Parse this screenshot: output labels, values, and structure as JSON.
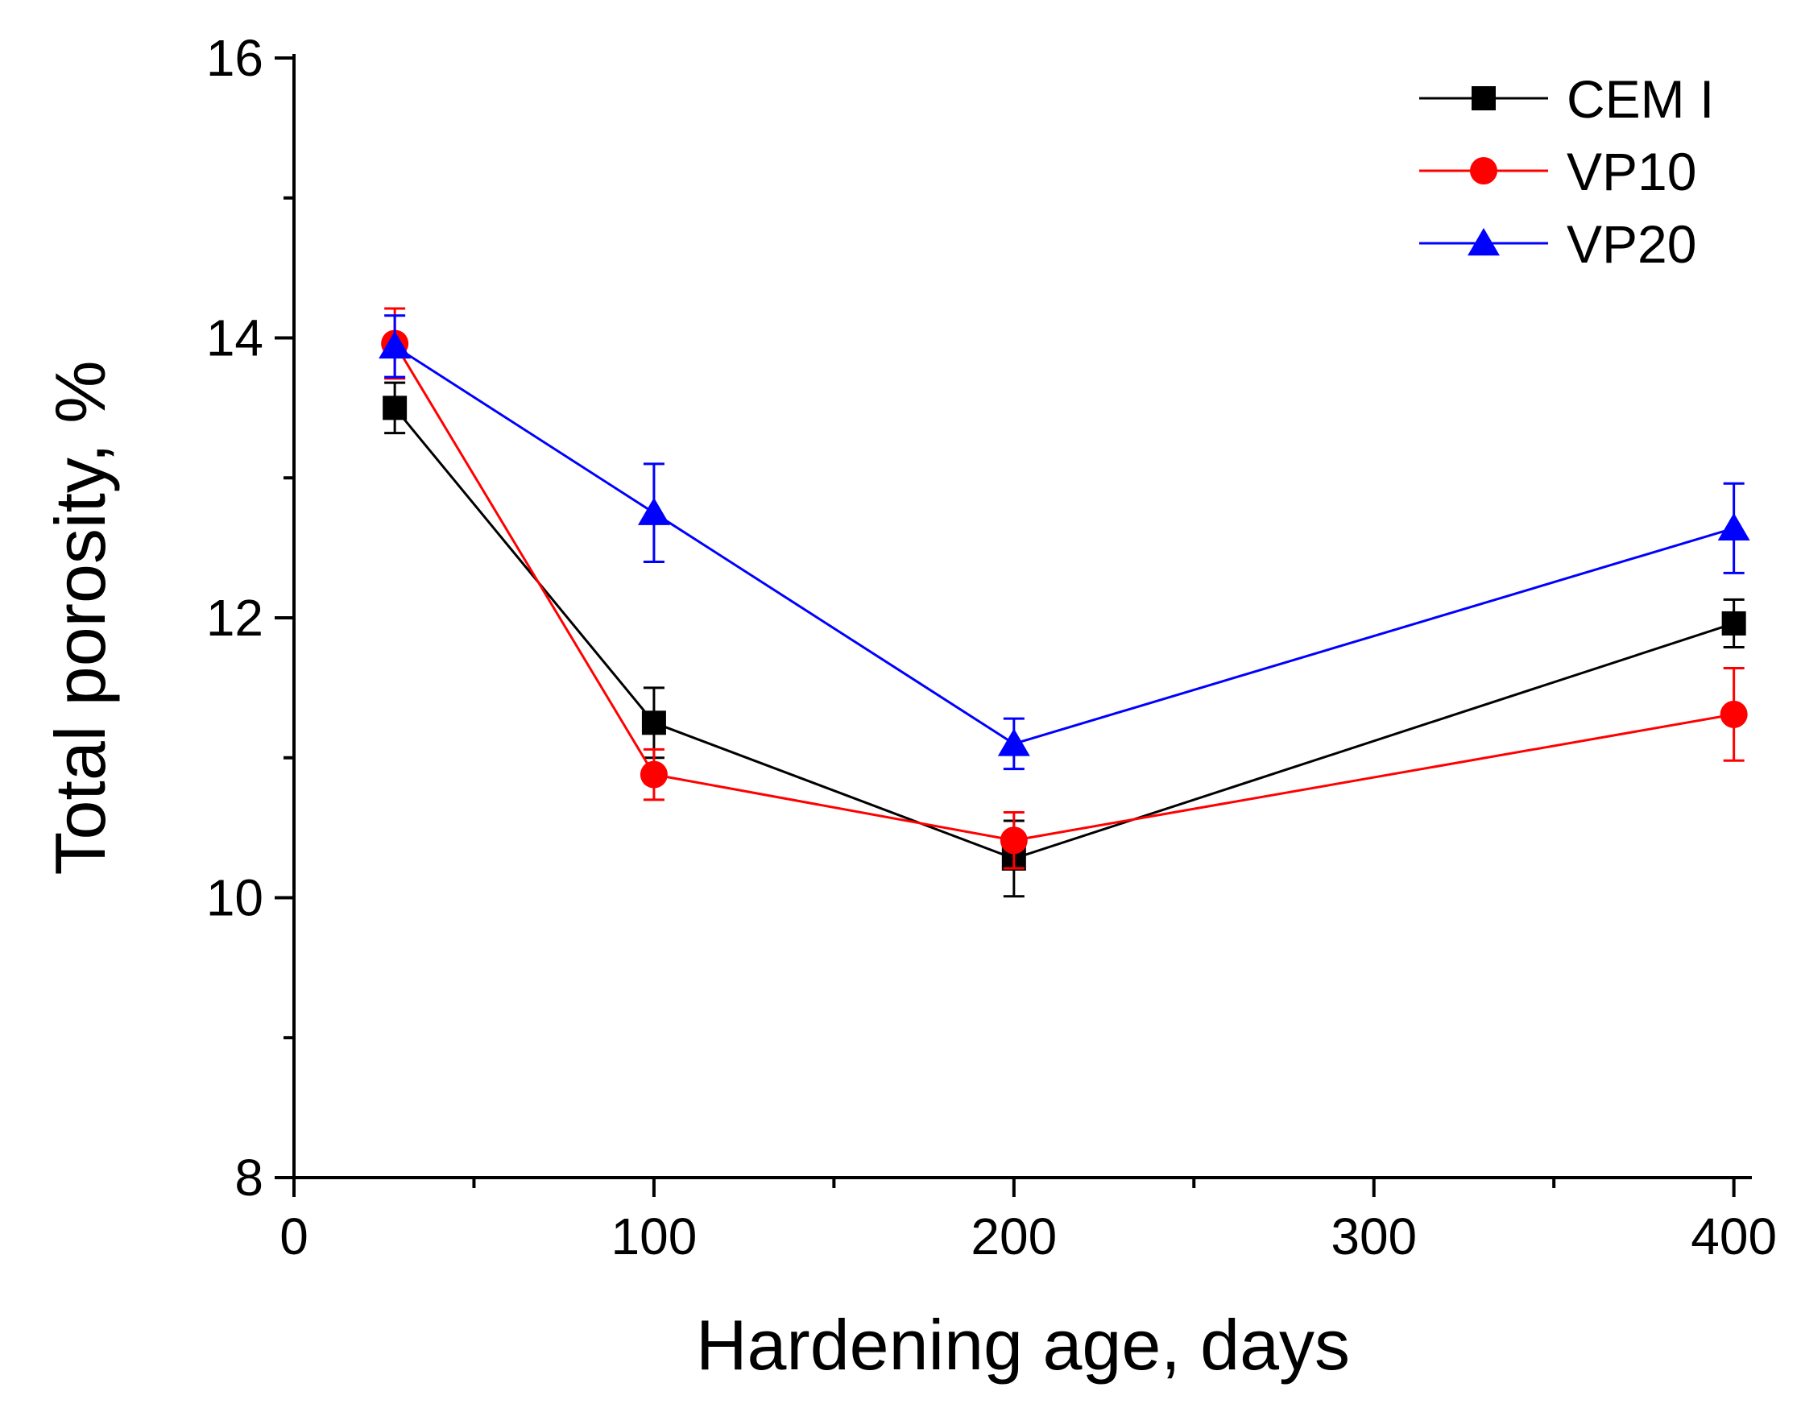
{
  "chart_data": {
    "type": "line",
    "title": "",
    "xlabel": "Hardening age, days",
    "ylabel": "Total porosity, %",
    "xlim": [
      0,
      405
    ],
    "ylim": [
      8,
      16
    ],
    "x_ticks": [
      0,
      100,
      200,
      300,
      400
    ],
    "y_ticks": [
      8,
      10,
      12,
      14,
      16
    ],
    "x_minor_step": 50,
    "y_minor_step": 1,
    "x_tick_labels": [
      "0",
      "100",
      "200",
      "300",
      "400"
    ],
    "y_tick_labels": [
      "8",
      "10",
      "12",
      "14",
      "16"
    ],
    "legend_position": "top-right",
    "grid": false,
    "x": [
      28,
      100,
      200,
      400
    ],
    "series": [
      {
        "name": "CEM I",
        "color": "#000000",
        "marker": "square",
        "values": [
          13.5,
          11.25,
          10.28,
          11.96
        ],
        "errors": [
          0.18,
          0.25,
          0.27,
          0.17
        ]
      },
      {
        "name": "VP10",
        "color": "#ff0000",
        "marker": "circle",
        "values": [
          13.96,
          10.88,
          10.41,
          11.31
        ],
        "errors": [
          0.25,
          0.18,
          0.2,
          0.33
        ]
      },
      {
        "name": "VP20",
        "color": "#0000ff",
        "marker": "triangle",
        "values": [
          13.94,
          12.75,
          11.1,
          12.64
        ],
        "errors": [
          0.22,
          0.35,
          0.18,
          0.32
        ]
      }
    ]
  }
}
